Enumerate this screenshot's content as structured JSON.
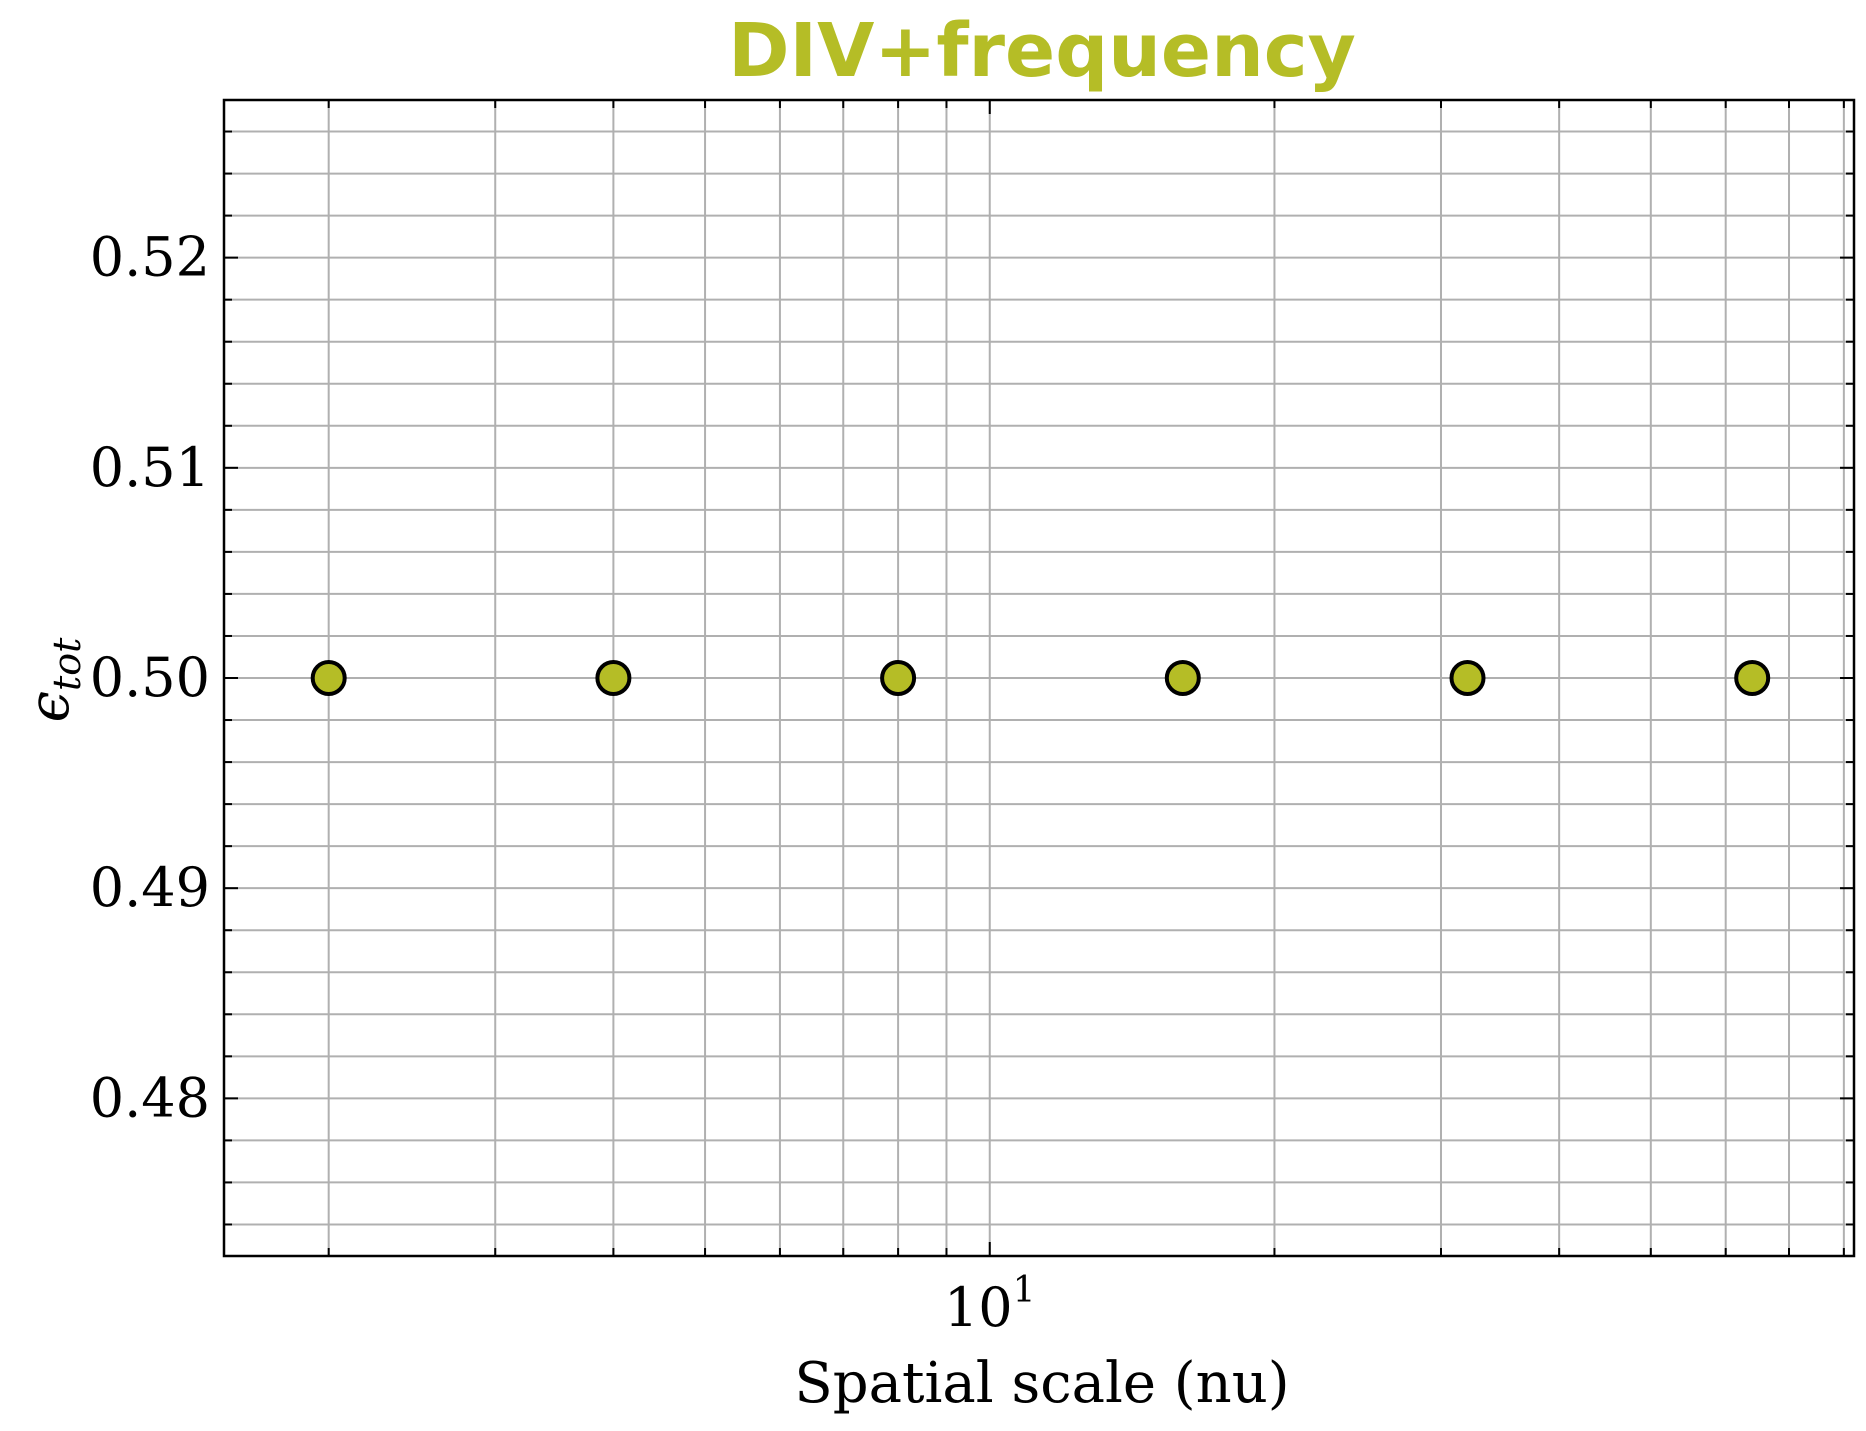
{
  "chart_data": {
    "type": "scatter",
    "title": "DIV+frequency",
    "title_color": "#b5bd26",
    "xlabel": "Spatial scale (nu)",
    "ylabel": "ϵ",
    "ylabel_subscript": "tot",
    "x_scale": "log",
    "xlim": [
      1.55,
      82
    ],
    "ylim": [
      0.4725,
      0.5275
    ],
    "x_ticks": [
      {
        "value": 10,
        "base": "10",
        "exponent": "1"
      }
    ],
    "y_ticks": [
      {
        "value": 0.48,
        "label": "0.48"
      },
      {
        "value": 0.49,
        "label": "0.49"
      },
      {
        "value": 0.5,
        "label": "0.50"
      },
      {
        "value": 0.51,
        "label": "0.51"
      },
      {
        "value": 0.52,
        "label": "0.52"
      }
    ],
    "y_minor_step": 0.002,
    "grid": true,
    "marker_color": "#b5bd26",
    "marker_edge_color": "#000000",
    "points": [
      {
        "x": 2,
        "y": 0.5
      },
      {
        "x": 4,
        "y": 0.5
      },
      {
        "x": 8,
        "y": 0.5
      },
      {
        "x": 16,
        "y": 0.5
      },
      {
        "x": 32,
        "y": 0.5
      },
      {
        "x": 64,
        "y": 0.5
      }
    ]
  }
}
